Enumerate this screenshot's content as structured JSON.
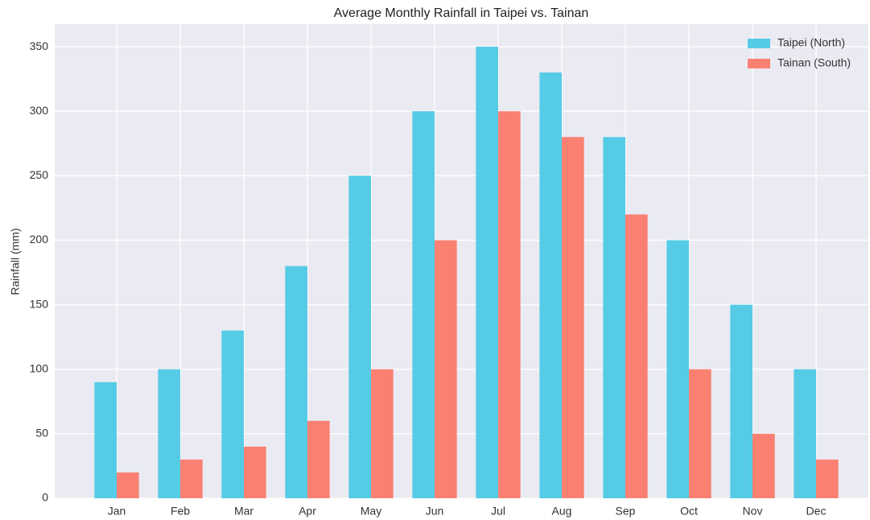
{
  "chart_data": {
    "type": "bar",
    "title": "Average Monthly Rainfall in Taipei vs. Tainan",
    "ylabel": "Rainfall (mm)",
    "categories": [
      "Jan",
      "Feb",
      "Mar",
      "Apr",
      "May",
      "Jun",
      "Jul",
      "Aug",
      "Sep",
      "Oct",
      "Nov",
      "Dec"
    ],
    "series": [
      {
        "name": "Taipei (North)",
        "color": "#56cbe6",
        "values": [
          90,
          100,
          130,
          180,
          250,
          300,
          350,
          330,
          280,
          200,
          150,
          100
        ]
      },
      {
        "name": "Tainan (South)",
        "color": "#fa8072",
        "values": [
          20,
          30,
          40,
          60,
          100,
          200,
          300,
          280,
          220,
          100,
          50,
          30
        ]
      }
    ],
    "ylim": [
      0,
      367.5
    ],
    "yticks": [
      0,
      50,
      100,
      150,
      200,
      250,
      300,
      350
    ],
    "grid": true,
    "legend": "upper right"
  }
}
